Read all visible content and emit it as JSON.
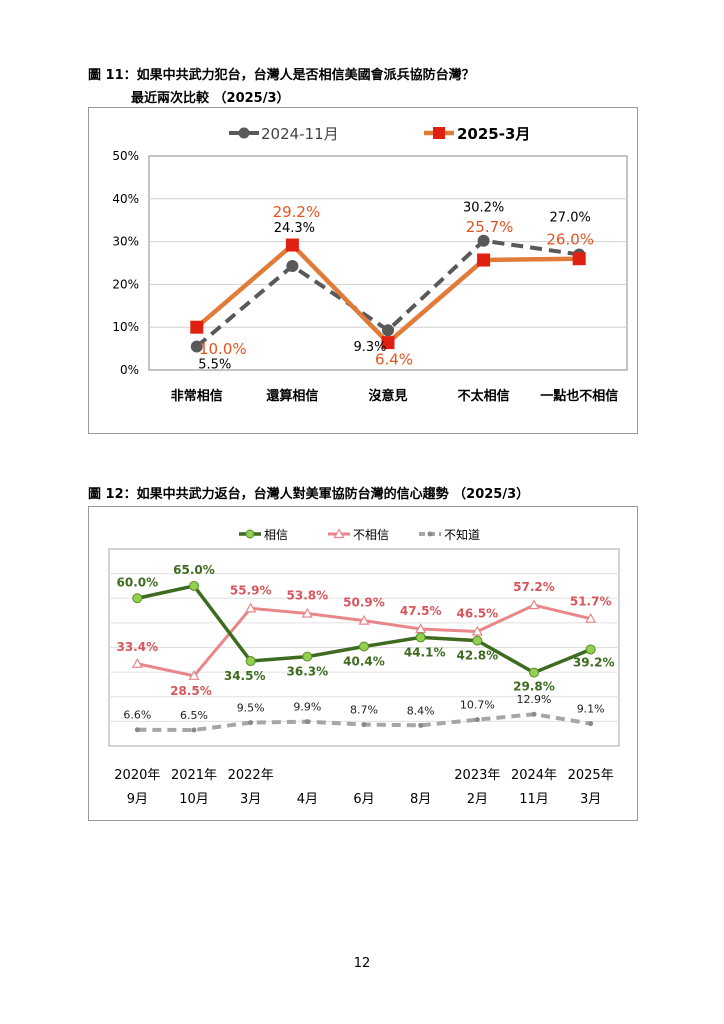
{
  "page_number": "12",
  "figure11": {
    "caption_num": "圖 11",
    "caption_text": "：如果中共武力犯台，台灣人是否相信美國會派兵協防台灣？",
    "caption_line2": "最近兩次比較 （2025/3）"
  },
  "figure12": {
    "caption_num": "圖 12",
    "caption_text": "：如果中共武力返台，台灣人對美軍協防台灣的信心趨勢 （2025/3）"
  },
  "chart_data": [
    {
      "type": "line",
      "categories": [
        "非常相信",
        "還算相信",
        "沒意見",
        "不太相信",
        "一點也不相信"
      ],
      "ylim": [
        0,
        50
      ],
      "yticks": [
        "0%",
        "10%",
        "20%",
        "30%",
        "40%",
        "50%"
      ],
      "grid": true,
      "legend_position": "top",
      "series": [
        {
          "name": "2024-11月",
          "values": [
            5.5,
            24.3,
            9.3,
            30.2,
            27.0
          ],
          "labels": [
            "5.5%",
            "24.3%",
            "9.3%",
            "30.2%",
            "27.0%"
          ],
          "color": "#595959",
          "style": "dashed"
        },
        {
          "name": "2025-3月",
          "values": [
            10.0,
            29.2,
            6.4,
            25.7,
            26.0
          ],
          "labels": [
            "10.0%",
            "29.2%",
            "6.4%",
            "25.7%",
            "26.0%"
          ],
          "color": "#E07B39",
          "marker_color": "#E02010",
          "style": "solid"
        }
      ]
    },
    {
      "type": "line",
      "categories": [
        "2020年 9月",
        "2021年 10月",
        "2022年 3月",
        "4月",
        "6月",
        "8月",
        "2023年 2月",
        "2024年 11月",
        "2025年 3月"
      ],
      "cat_line1": [
        "2020年",
        "2021年",
        "2022年",
        "",
        "",
        "",
        "2023年",
        "2024年",
        "2025年"
      ],
      "cat_line2": [
        "9月",
        "10月",
        "3月",
        "4月",
        "6月",
        "8月",
        "2月",
        "11月",
        "3月"
      ],
      "ylim": [
        0,
        80
      ],
      "grid": true,
      "legend_position": "top",
      "series": [
        {
          "name": "相信",
          "values": [
            60.0,
            65.0,
            34.5,
            36.3,
            40.4,
            44.1,
            42.8,
            29.8,
            39.2
          ],
          "labels": [
            "60.0%",
            "65.0%",
            "34.5%",
            "36.3%",
            "40.4%",
            "44.1%",
            "42.8%",
            "29.8%",
            "39.2%"
          ],
          "color": "#3D6B1F",
          "marker_color": "#92D050"
        },
        {
          "name": "不相信",
          "values": [
            33.4,
            28.5,
            55.9,
            53.8,
            50.9,
            47.5,
            46.5,
            57.2,
            51.7
          ],
          "labels": [
            "33.4%",
            "28.5%",
            "55.9%",
            "53.8%",
            "50.9%",
            "47.5%",
            "46.5%",
            "57.2%",
            "51.7%"
          ],
          "color": "#E8868A"
        },
        {
          "name": "不知道",
          "values": [
            6.6,
            6.5,
            9.5,
            9.9,
            8.7,
            8.4,
            10.7,
            12.9,
            9.1
          ],
          "labels": [
            "6.6%",
            "6.5%",
            "9.5%",
            "9.9%",
            "8.7%",
            "8.4%",
            "10.7%",
            "12.9%",
            "9.1%"
          ],
          "color": "#A6A6A6",
          "style": "dashed"
        }
      ]
    }
  ]
}
